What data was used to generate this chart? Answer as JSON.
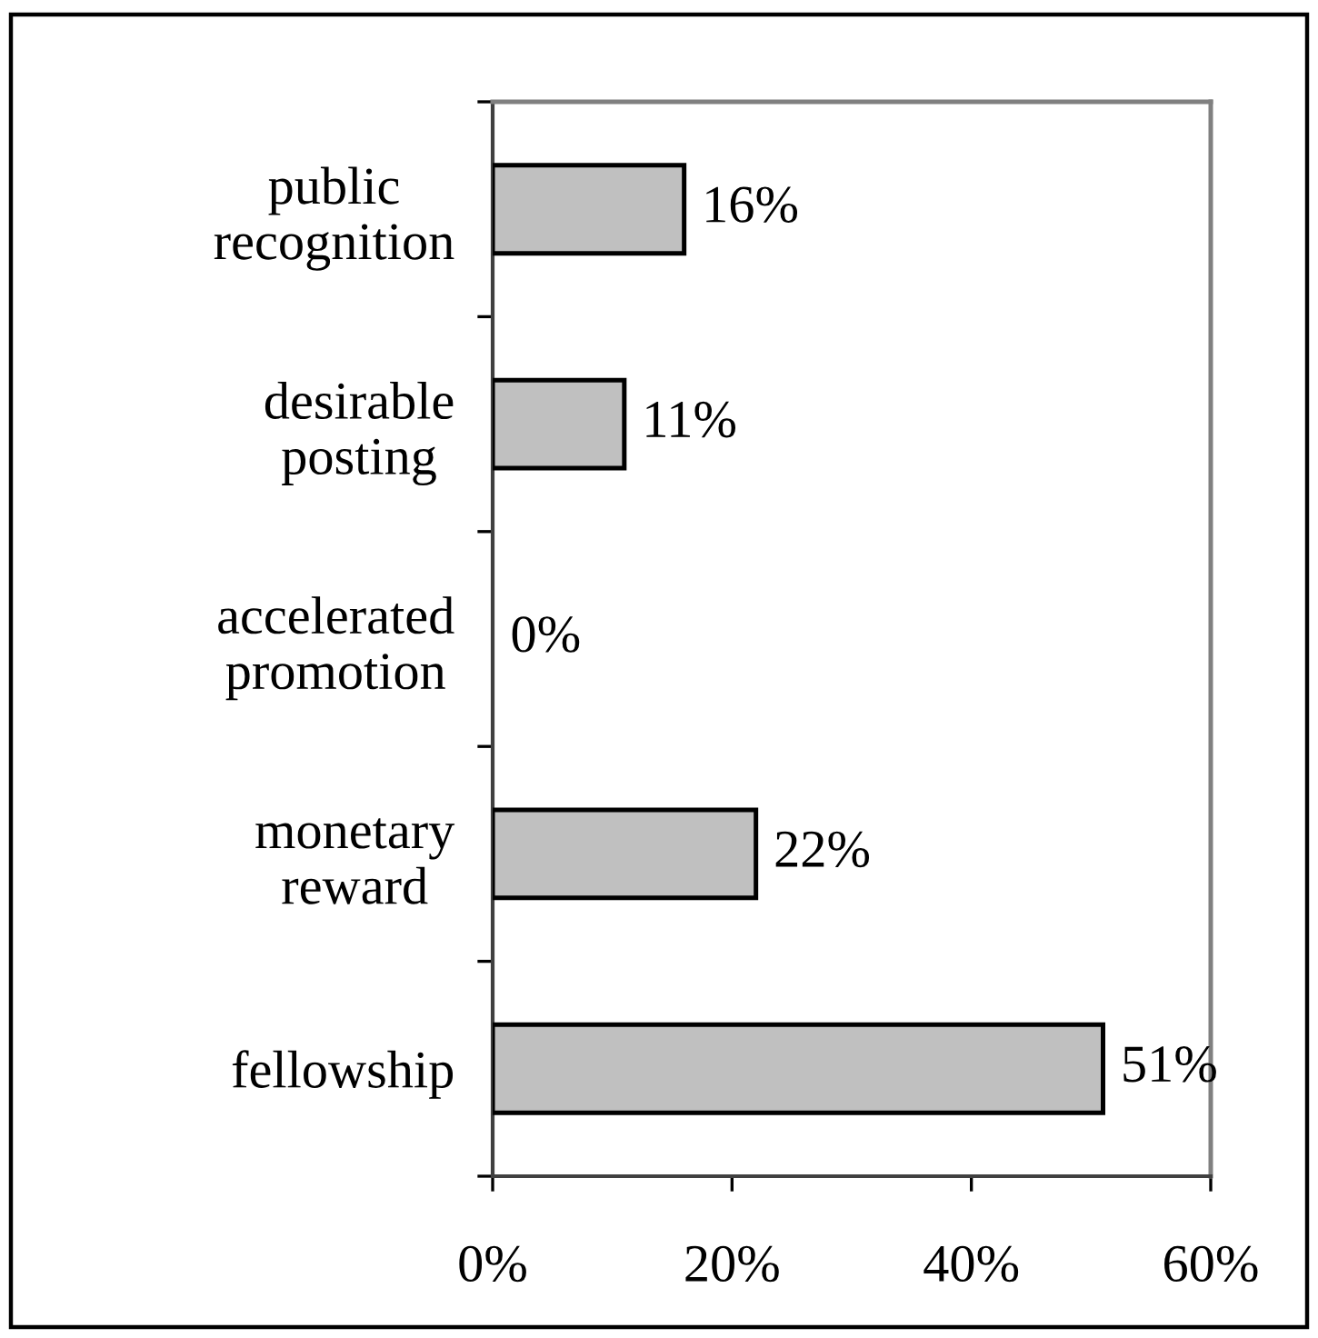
{
  "chart_data": {
    "type": "bar",
    "orientation": "horizontal",
    "categories": [
      "public recognition",
      "desirable posting",
      "accelerated promotion",
      "monetary reward",
      "fellowship"
    ],
    "values": [
      16,
      11,
      0,
      22,
      51
    ],
    "color": "#c0c0c0",
    "value_labels": [
      "16%",
      "11%",
      "0%",
      "22%",
      "51%"
    ],
    "xlim": [
      0,
      60
    ],
    "xticks": [
      {
        "value": 0,
        "label": "0%"
      },
      {
        "value": 20,
        "label": "20%"
      },
      {
        "value": 40,
        "label": "40%"
      },
      {
        "value": 60,
        "label": "60%"
      }
    ]
  }
}
